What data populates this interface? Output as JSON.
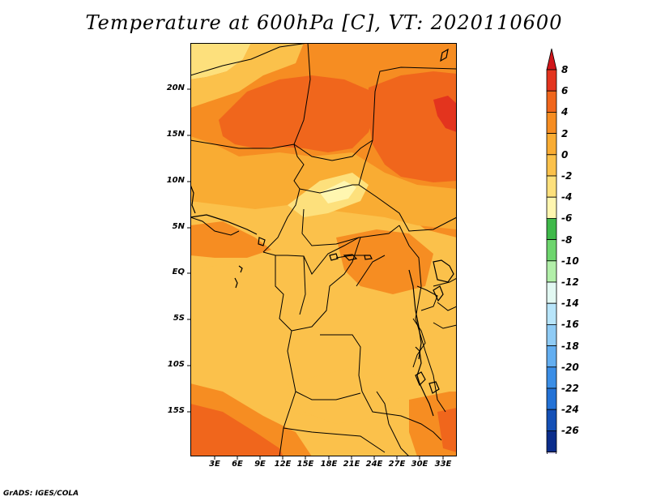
{
  "title": "Temperature at 600hPa [C], VT: 2020110600",
  "credit": "GrADS: IGES/COLA",
  "axes": {
    "y_labels": [
      "20N",
      "15N",
      "10N",
      "5N",
      "EQ",
      "5S",
      "10S",
      "15S"
    ],
    "x_labels": [
      "3E",
      "6E",
      "9E",
      "12E",
      "15E",
      "18E",
      "21E",
      "24E",
      "27E",
      "30E",
      "33E"
    ]
  },
  "colorbar": {
    "labels": [
      "8",
      "6",
      "4",
      "2",
      "0",
      "-2",
      "-4",
      "-6",
      "-8",
      "-10",
      "-12",
      "-14",
      "-16",
      "-18",
      "-20",
      "-22",
      "-24",
      "-26"
    ],
    "colors": [
      "#e3341e",
      "#f0661c",
      "#f68d22",
      "#f9ac33",
      "#fbc14b",
      "#fde07c",
      "#fff6b0",
      "#3fb94a",
      "#6dd56d",
      "#b2efa9",
      "#e2f8f2",
      "#b8e5fa",
      "#8fcbf5",
      "#63aef0",
      "#3b8ee6",
      "#2372d6",
      "#1450b6",
      "#0b2d8b"
    ],
    "top_color": "#d0161a",
    "bottom_color": "#dcd9f3"
  },
  "palette": {
    "level_8": "#e3341e",
    "level_6": "#f0661c",
    "level_4": "#f68d22",
    "level_2": "#f9ac33",
    "level_0": "#fbc14b",
    "level_m2": "#fde07c",
    "level_m4": "#fff6b0"
  }
}
